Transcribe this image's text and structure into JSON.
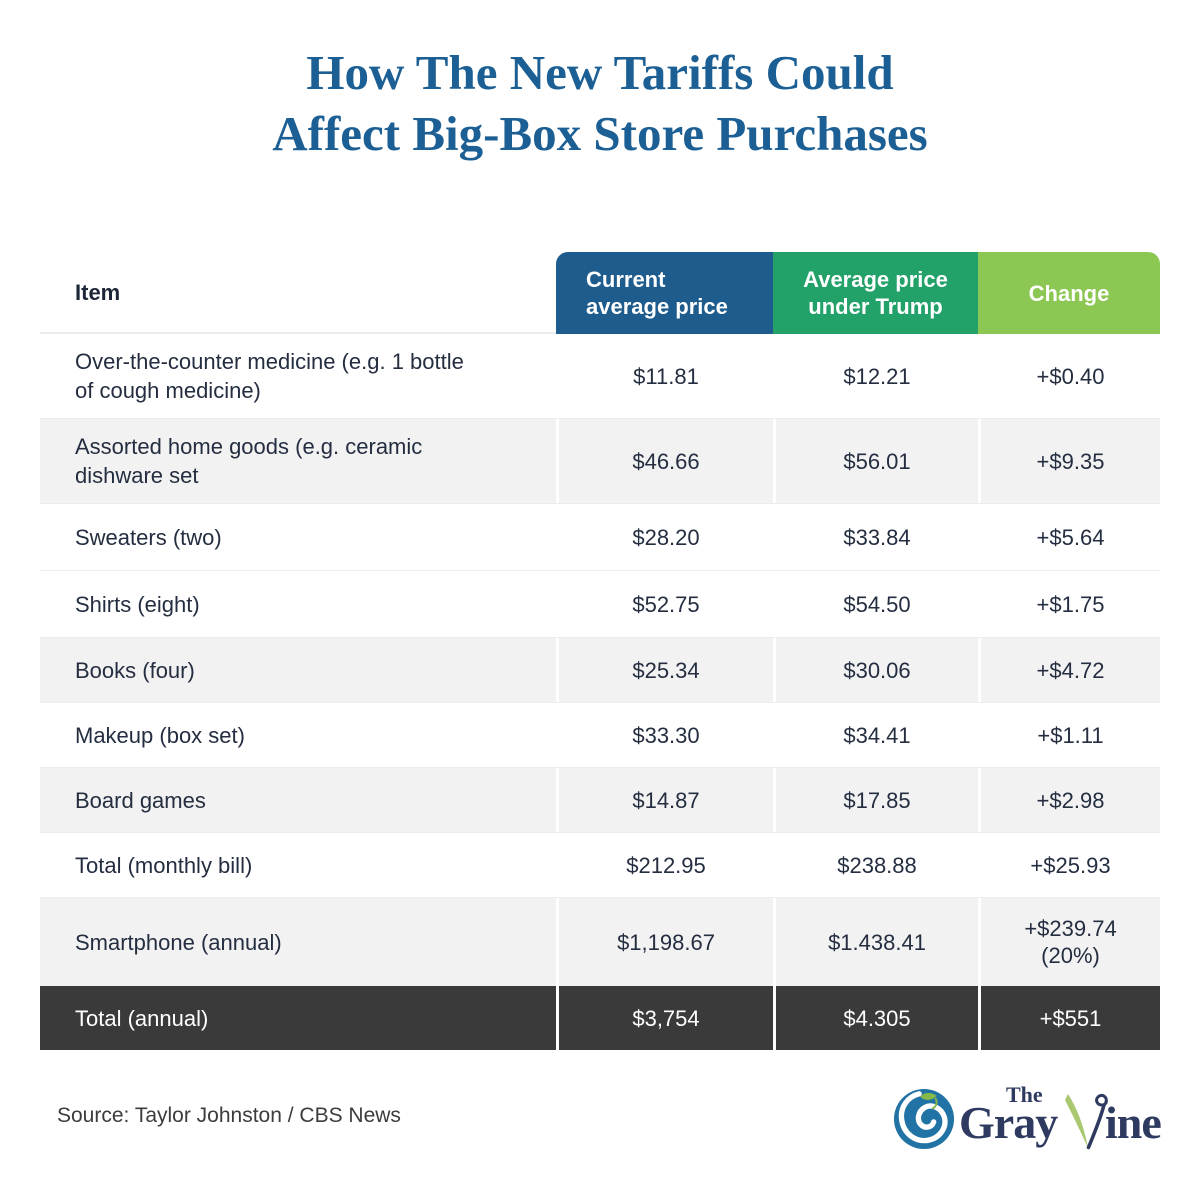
{
  "title": {
    "line1": "How The New Tariffs Could",
    "line2": "Affect Big-Box Store Purchases"
  },
  "table": {
    "item_header": "Item",
    "columns": [
      {
        "label": "Current\naverage price",
        "color": "#1e5c8e"
      },
      {
        "label": "Average price\nunder Trump",
        "color": "#22a169"
      },
      {
        "label": "Change",
        "color": "#8cc653"
      }
    ],
    "rows": [
      {
        "item": "Over-the-counter medicine (e.g. 1 bottle\nof cough medicine)",
        "current": "$11.81",
        "trump": "$12.21",
        "change": "+$0.40",
        "shade": "white"
      },
      {
        "item": "Assorted home goods (e.g. ceramic\ndishware set",
        "current": "$46.66",
        "trump": "$56.01",
        "change": "+$9.35",
        "shade": "gray"
      },
      {
        "item": "Sweaters (two)",
        "current": "$28.20",
        "trump": "$33.84",
        "change": "+$5.64",
        "shade": "white"
      },
      {
        "item": "Shirts (eight)",
        "current": "$52.75",
        "trump": "$54.50",
        "change": "+$1.75",
        "shade": "white"
      },
      {
        "item": "Books (four)",
        "current": "$25.34",
        "trump": "$30.06",
        "change": "+$4.72",
        "shade": "gray"
      },
      {
        "item": "Makeup (box set)",
        "current": "$33.30",
        "trump": "$34.41",
        "change": "+$1.11",
        "shade": "white"
      },
      {
        "item": "Board games",
        "current": "$14.87",
        "trump": "$17.85",
        "change": "+$2.98",
        "shade": "gray"
      },
      {
        "item": "Total (monthly bill)",
        "current": "$212.95",
        "trump": "$238.88",
        "change": "+$25.93",
        "shade": "white"
      },
      {
        "item": "Smartphone (annual)",
        "current": "$1,198.67",
        "trump": "$1.438.41",
        "change": "+$239.74\n(20%)",
        "shade": "gray"
      },
      {
        "item": "Total (annual)",
        "current": "$3,754",
        "trump": "$4.305",
        "change": "+$551",
        "shade": "dark"
      }
    ]
  },
  "chart_data": {
    "type": "table",
    "title": "How The New Tariffs Could Affect Big-Box Store Purchases",
    "columns": [
      "Item",
      "Current average price",
      "Average price under Trump",
      "Change"
    ],
    "rows": [
      [
        "Over-the-counter medicine (e.g. 1 bottle of cough medicine)",
        "$11.81",
        "$12.21",
        "+$0.40"
      ],
      [
        "Assorted home goods (e.g. ceramic dishware set",
        "$46.66",
        "$56.01",
        "+$9.35"
      ],
      [
        "Sweaters (two)",
        "$28.20",
        "$33.84",
        "+$5.64"
      ],
      [
        "Shirts (eight)",
        "$52.75",
        "$54.50",
        "+$1.75"
      ],
      [
        "Books (four)",
        "$25.34",
        "$30.06",
        "+$4.72"
      ],
      [
        "Makeup (box set)",
        "$33.30",
        "$34.41",
        "+$1.11"
      ],
      [
        "Board games",
        "$14.87",
        "$17.85",
        "+$2.98"
      ],
      [
        "Total (monthly bill)",
        "$212.95",
        "$238.88",
        "+$25.93"
      ],
      [
        "Smartphone (annual)",
        "$1,198.67",
        "$1.438.41",
        "+$239.74 (20%)"
      ],
      [
        "Total (annual)",
        "$3,754",
        "$4.305",
        "+$551"
      ]
    ],
    "highlight_rows": [
      "Total (annual)"
    ],
    "source": "Source: Taylor Johnston / CBS News"
  },
  "footer": {
    "source": "Source: Taylor Johnston / CBS News",
    "logo": {
      "the": "The",
      "gray": "Gray",
      "ine": "ine"
    }
  },
  "colors": {
    "title_blue": "#1b5f94",
    "header_blue": "#1e5c8e",
    "header_green": "#22a169",
    "header_light_green": "#8cc653",
    "row_gray": "#f2f2f2",
    "total_row_dark": "#3a3a3a",
    "body_text": "#242e40",
    "logo_navy": "#2e3a5f",
    "logo_circle_blue": "#2173a5",
    "leaf_green": "#86b94a"
  }
}
